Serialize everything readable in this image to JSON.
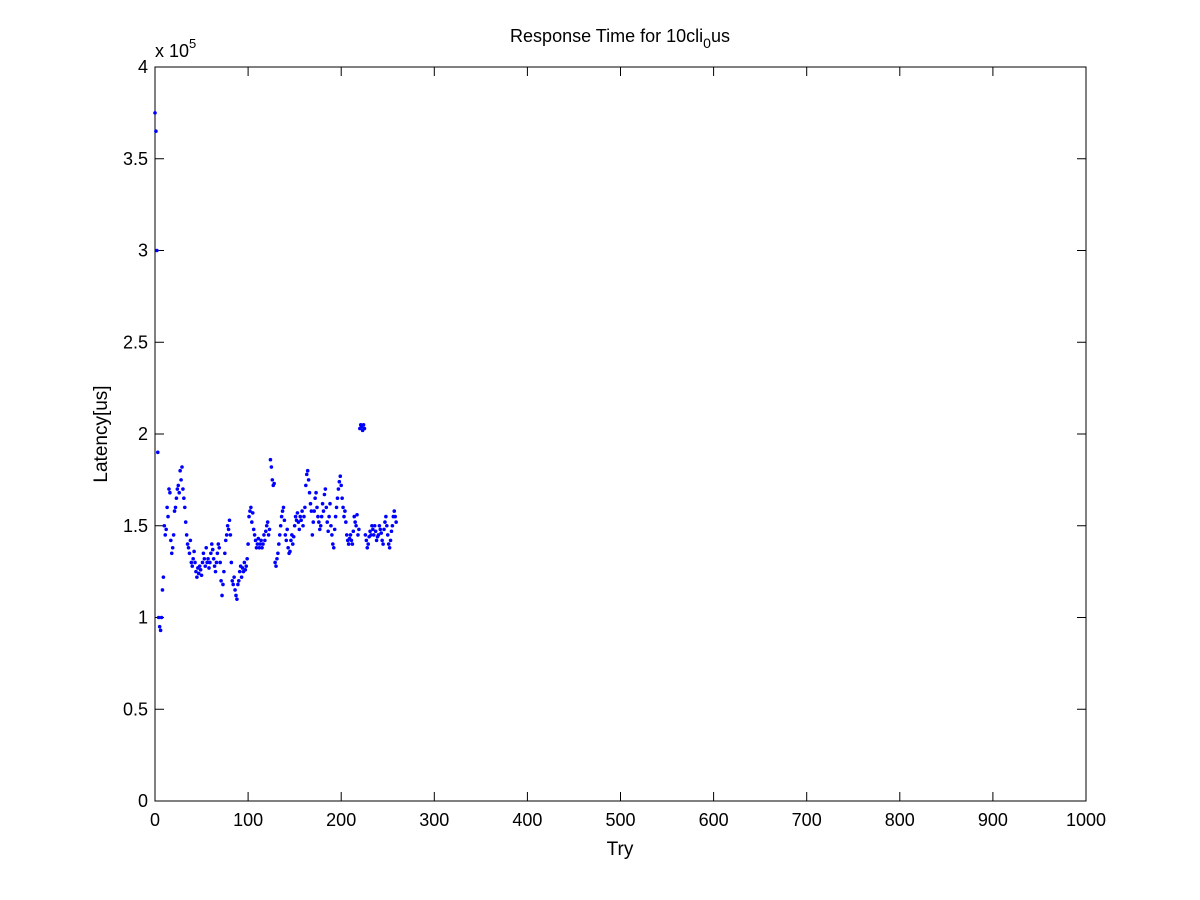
{
  "chart_data": {
    "type": "scatter",
    "title": "Response Time for 10cli",
    "title_subscript": "0",
    "title_suffix": "us",
    "xlabel": "Try",
    "ylabel": "Latency[us]",
    "y_exponent_label": "x 10",
    "y_exponent_power": "5",
    "xlim": [
      0,
      1000
    ],
    "ylim": [
      0,
      4
    ],
    "x_ticks": [
      "0",
      "100",
      "200",
      "300",
      "400",
      "500",
      "600",
      "700",
      "800",
      "900",
      "1000"
    ],
    "y_ticks": [
      "0",
      "0.5",
      "1",
      "1.5",
      "2",
      "2.5",
      "3",
      "3.5",
      "4"
    ],
    "grid": false,
    "marker_color": "#0000ff",
    "series": [
      {
        "values": [
          [
            0,
            3.75
          ],
          [
            1,
            3.65
          ],
          [
            2,
            3.0
          ],
          [
            3,
            1.9
          ],
          [
            4,
            1.0
          ],
          [
            5,
            0.95
          ],
          [
            6,
            0.93
          ],
          [
            7,
            1.0
          ],
          [
            8,
            1.15
          ],
          [
            9,
            1.22
          ],
          [
            10,
            1.5
          ],
          [
            11,
            1.45
          ],
          [
            12,
            1.48
          ],
          [
            13,
            1.6
          ],
          [
            14,
            1.55
          ],
          [
            15,
            1.7
          ],
          [
            16,
            1.68
          ],
          [
            17,
            1.42
          ],
          [
            18,
            1.35
          ],
          [
            19,
            1.38
          ],
          [
            20,
            1.45
          ],
          [
            21,
            1.58
          ],
          [
            22,
            1.6
          ],
          [
            23,
            1.65
          ],
          [
            24,
            1.7
          ],
          [
            25,
            1.72
          ],
          [
            26,
            1.68
          ],
          [
            27,
            1.8
          ],
          [
            28,
            1.75
          ],
          [
            29,
            1.82
          ],
          [
            30,
            1.7
          ],
          [
            31,
            1.65
          ],
          [
            32,
            1.6
          ],
          [
            33,
            1.52
          ],
          [
            34,
            1.45
          ],
          [
            35,
            1.4
          ],
          [
            36,
            1.38
          ],
          [
            37,
            1.35
          ],
          [
            38,
            1.42
          ],
          [
            39,
            1.3
          ],
          [
            40,
            1.28
          ],
          [
            41,
            1.32
          ],
          [
            42,
            1.36
          ],
          [
            43,
            1.3
          ],
          [
            44,
            1.25
          ],
          [
            45,
            1.22
          ],
          [
            46,
            1.27
          ],
          [
            47,
            1.24
          ],
          [
            48,
            1.28
          ],
          [
            49,
            1.26
          ],
          [
            50,
            1.23
          ],
          [
            51,
            1.3
          ],
          [
            52,
            1.35
          ],
          [
            53,
            1.32
          ],
          [
            54,
            1.28
          ],
          [
            55,
            1.38
          ],
          [
            56,
            1.3
          ],
          [
            57,
            1.32
          ],
          [
            58,
            1.27
          ],
          [
            59,
            1.3
          ],
          [
            60,
            1.35
          ],
          [
            61,
            1.4
          ],
          [
            62,
            1.37
          ],
          [
            63,
            1.32
          ],
          [
            64,
            1.28
          ],
          [
            65,
            1.25
          ],
          [
            66,
            1.3
          ],
          [
            67,
            1.35
          ],
          [
            68,
            1.4
          ],
          [
            69,
            1.38
          ],
          [
            70,
            1.3
          ],
          [
            71,
            1.2
          ],
          [
            72,
            1.12
          ],
          [
            73,
            1.18
          ],
          [
            74,
            1.25
          ],
          [
            75,
            1.35
          ],
          [
            76,
            1.42
          ],
          [
            77,
            1.45
          ],
          [
            78,
            1.5
          ],
          [
            79,
            1.48
          ],
          [
            80,
            1.53
          ],
          [
            81,
            1.45
          ],
          [
            82,
            1.3
          ],
          [
            83,
            1.2
          ],
          [
            84,
            1.18
          ],
          [
            85,
            1.22
          ],
          [
            86,
            1.15
          ],
          [
            87,
            1.12
          ],
          [
            88,
            1.1
          ],
          [
            89,
            1.18
          ],
          [
            90,
            1.2
          ],
          [
            91,
            1.25
          ],
          [
            92,
            1.28
          ],
          [
            93,
            1.22
          ],
          [
            94,
            1.27
          ],
          [
            95,
            1.25
          ],
          [
            96,
            1.3
          ],
          [
            97,
            1.26
          ],
          [
            98,
            1.28
          ],
          [
            99,
            1.32
          ],
          [
            100,
            1.4
          ],
          [
            101,
            1.55
          ],
          [
            102,
            1.58
          ],
          [
            103,
            1.6
          ],
          [
            104,
            1.52
          ],
          [
            105,
            1.57
          ],
          [
            106,
            1.48
          ],
          [
            107,
            1.45
          ],
          [
            108,
            1.42
          ],
          [
            109,
            1.38
          ],
          [
            110,
            1.4
          ],
          [
            111,
            1.43
          ],
          [
            112,
            1.38
          ],
          [
            113,
            1.4
          ],
          [
            114,
            1.42
          ],
          [
            115,
            1.38
          ],
          [
            116,
            1.4
          ],
          [
            117,
            1.45
          ],
          [
            118,
            1.42
          ],
          [
            119,
            1.47
          ],
          [
            120,
            1.5
          ],
          [
            121,
            1.52
          ],
          [
            122,
            1.45
          ],
          [
            123,
            1.48
          ],
          [
            124,
            1.86
          ],
          [
            125,
            1.82
          ],
          [
            126,
            1.75
          ],
          [
            127,
            1.72
          ],
          [
            128,
            1.73
          ],
          [
            129,
            1.3
          ],
          [
            130,
            1.28
          ],
          [
            131,
            1.32
          ],
          [
            132,
            1.35
          ],
          [
            133,
            1.4
          ],
          [
            134,
            1.45
          ],
          [
            135,
            1.5
          ],
          [
            136,
            1.55
          ],
          [
            137,
            1.58
          ],
          [
            138,
            1.6
          ],
          [
            139,
            1.53
          ],
          [
            140,
            1.45
          ],
          [
            141,
            1.42
          ],
          [
            142,
            1.48
          ],
          [
            143,
            1.38
          ],
          [
            144,
            1.35
          ],
          [
            145,
            1.36
          ],
          [
            146,
            1.42
          ],
          [
            147,
            1.45
          ],
          [
            148,
            1.4
          ],
          [
            149,
            1.44
          ],
          [
            150,
            1.5
          ],
          [
            151,
            1.55
          ],
          [
            152,
            1.53
          ],
          [
            153,
            1.57
          ],
          [
            154,
            1.52
          ],
          [
            155,
            1.48
          ],
          [
            156,
            1.55
          ],
          [
            157,
            1.53
          ],
          [
            158,
            1.58
          ],
          [
            159,
            1.5
          ],
          [
            160,
            1.55
          ],
          [
            161,
            1.6
          ],
          [
            162,
            1.72
          ],
          [
            163,
            1.78
          ],
          [
            164,
            1.8
          ],
          [
            165,
            1.75
          ],
          [
            166,
            1.68
          ],
          [
            167,
            1.62
          ],
          [
            168,
            1.58
          ],
          [
            169,
            1.45
          ],
          [
            170,
            1.52
          ],
          [
            171,
            1.58
          ],
          [
            172,
            1.65
          ],
          [
            173,
            1.68
          ],
          [
            174,
            1.6
          ],
          [
            175,
            1.55
          ],
          [
            176,
            1.52
          ],
          [
            177,
            1.48
          ],
          [
            178,
            1.5
          ],
          [
            179,
            1.55
          ],
          [
            180,
            1.62
          ],
          [
            181,
            1.58
          ],
          [
            182,
            1.67
          ],
          [
            183,
            1.7
          ],
          [
            184,
            1.6
          ],
          [
            185,
            1.52
          ],
          [
            186,
            1.47
          ],
          [
            187,
            1.55
          ],
          [
            188,
            1.62
          ],
          [
            189,
            1.5
          ],
          [
            190,
            1.45
          ],
          [
            191,
            1.4
          ],
          [
            192,
            1.38
          ],
          [
            193,
            1.48
          ],
          [
            194,
            1.55
          ],
          [
            195,
            1.6
          ],
          [
            196,
            1.65
          ],
          [
            197,
            1.7
          ],
          [
            198,
            1.74
          ],
          [
            199,
            1.77
          ],
          [
            200,
            1.72
          ],
          [
            201,
            1.65
          ],
          [
            202,
            1.6
          ],
          [
            203,
            1.55
          ],
          [
            204,
            1.58
          ],
          [
            205,
            1.52
          ],
          [
            206,
            1.45
          ],
          [
            207,
            1.42
          ],
          [
            208,
            1.4
          ],
          [
            209,
            1.43
          ],
          [
            210,
            1.45
          ],
          [
            211,
            1.42
          ],
          [
            212,
            1.4
          ],
          [
            213,
            1.47
          ],
          [
            214,
            1.55
          ],
          [
            215,
            1.52
          ],
          [
            216,
            1.5
          ],
          [
            217,
            1.56
          ],
          [
            218,
            1.45
          ],
          [
            219,
            1.48
          ],
          [
            220,
            2.03
          ],
          [
            221,
            2.05
          ],
          [
            222,
            2.04
          ],
          [
            223,
            2.02
          ],
          [
            224,
            2.05
          ],
          [
            225,
            2.03
          ],
          [
            226,
            1.45
          ],
          [
            227,
            1.42
          ],
          [
            228,
            1.38
          ],
          [
            229,
            1.4
          ],
          [
            230,
            1.44
          ],
          [
            231,
            1.47
          ],
          [
            232,
            1.45
          ],
          [
            233,
            1.5
          ],
          [
            234,
            1.48
          ],
          [
            235,
            1.45
          ],
          [
            236,
            1.5
          ],
          [
            237,
            1.47
          ],
          [
            238,
            1.42
          ],
          [
            239,
            1.44
          ],
          [
            240,
            1.45
          ],
          [
            241,
            1.5
          ],
          [
            242,
            1.48
          ],
          [
            243,
            1.46
          ],
          [
            244,
            1.42
          ],
          [
            245,
            1.4
          ],
          [
            246,
            1.48
          ],
          [
            247,
            1.52
          ],
          [
            248,
            1.55
          ],
          [
            249,
            1.5
          ],
          [
            250,
            1.45
          ],
          [
            251,
            1.4
          ],
          [
            252,
            1.38
          ],
          [
            253,
            1.42
          ],
          [
            254,
            1.47
          ],
          [
            255,
            1.5
          ],
          [
            256,
            1.55
          ],
          [
            257,
            1.58
          ],
          [
            258,
            1.55
          ],
          [
            259,
            1.52
          ]
        ]
      }
    ]
  }
}
